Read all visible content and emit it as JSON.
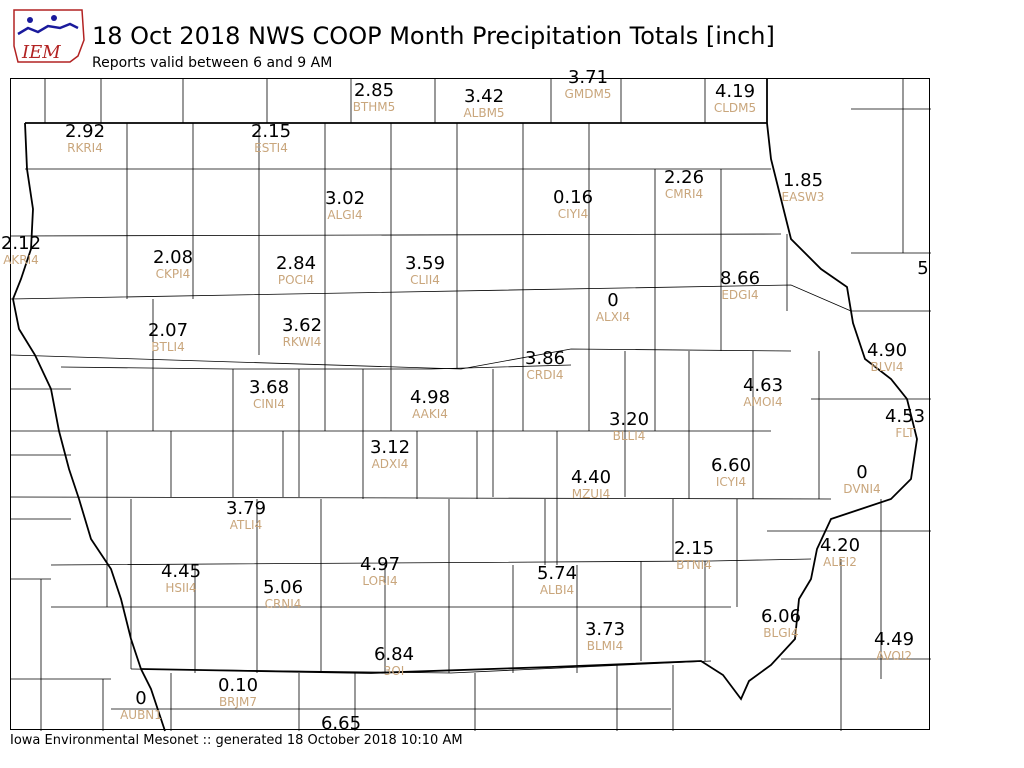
{
  "header": {
    "title": "18 Oct 2018 NWS COOP Month Precipitation Totals [inch]",
    "subtitle": "Reports valid between 6 and 9 AM"
  },
  "logo": {
    "text": "IEM"
  },
  "footer": {
    "text": "Iowa Environmental Mesonet :: generated 18 October 2018 10:10 AM"
  },
  "colors": {
    "value_text": "#000000",
    "station_id_text": "#c9a67c",
    "county_lines": "#000000"
  },
  "stations": [
    {
      "id": "BTHM5",
      "value": "2.85"
    },
    {
      "id": "ALBM5",
      "value": "3.42"
    },
    {
      "id": "GMDM5",
      "value": "3.71"
    },
    {
      "id": "CLDM5",
      "value": "4.19"
    },
    {
      "id": "RKRI4",
      "value": "2.92"
    },
    {
      "id": "ESTI4",
      "value": "2.15"
    },
    {
      "id": "ALGI4",
      "value": "3.02"
    },
    {
      "id": "CIYI4",
      "value": "0.16"
    },
    {
      "id": "CMRI4",
      "value": "2.26"
    },
    {
      "id": "EASW3",
      "value": "1.85"
    },
    {
      "id": "AKRI4",
      "value": "2.12"
    },
    {
      "id": "CKPI4",
      "value": "2.08"
    },
    {
      "id": "POCI4",
      "value": "2.84"
    },
    {
      "id": "CLII4",
      "value": "3.59"
    },
    {
      "id": "EDGI4",
      "value": "8.66"
    },
    {
      "id": "",
      "value": "5"
    },
    {
      "id": "ALXI4",
      "value": "0"
    },
    {
      "id": "BTLI4",
      "value": "2.07"
    },
    {
      "id": "RKWI4",
      "value": "3.62"
    },
    {
      "id": "CRDI4",
      "value": "3.86"
    },
    {
      "id": "BLVI4",
      "value": "4.90"
    },
    {
      "id": "CINI4",
      "value": "3.68"
    },
    {
      "id": "AAKI4",
      "value": "4.98"
    },
    {
      "id": "AMOI4",
      "value": "4.63"
    },
    {
      "id": "BLLI4",
      "value": "3.20"
    },
    {
      "id": "FLT",
      "value": "4.53"
    },
    {
      "id": "ADXI4",
      "value": "3.12"
    },
    {
      "id": "ICYI4",
      "value": "6.60"
    },
    {
      "id": "MZUI4",
      "value": "4.40"
    },
    {
      "id": "DVNI4",
      "value": "0"
    },
    {
      "id": "ATLI4",
      "value": "3.79"
    },
    {
      "id": "BTNI4",
      "value": "2.15"
    },
    {
      "id": "ALEI2",
      "value": "4.20"
    },
    {
      "id": "HSII4",
      "value": "4.45"
    },
    {
      "id": "CRNI4",
      "value": "5.06"
    },
    {
      "id": "LORI4",
      "value": "4.97"
    },
    {
      "id": "ALBI4",
      "value": "5.74"
    },
    {
      "id": "BLMI4",
      "value": "3.73"
    },
    {
      "id": "BLGI4",
      "value": "6.06"
    },
    {
      "id": "AVOI2",
      "value": "4.49"
    },
    {
      "id": "3OI",
      "value": "6.84"
    },
    {
      "id": "AUBN1",
      "value": "0"
    },
    {
      "id": "BRJM7",
      "value": "0.10"
    },
    {
      "id": "",
      "value": "6.65"
    }
  ]
}
